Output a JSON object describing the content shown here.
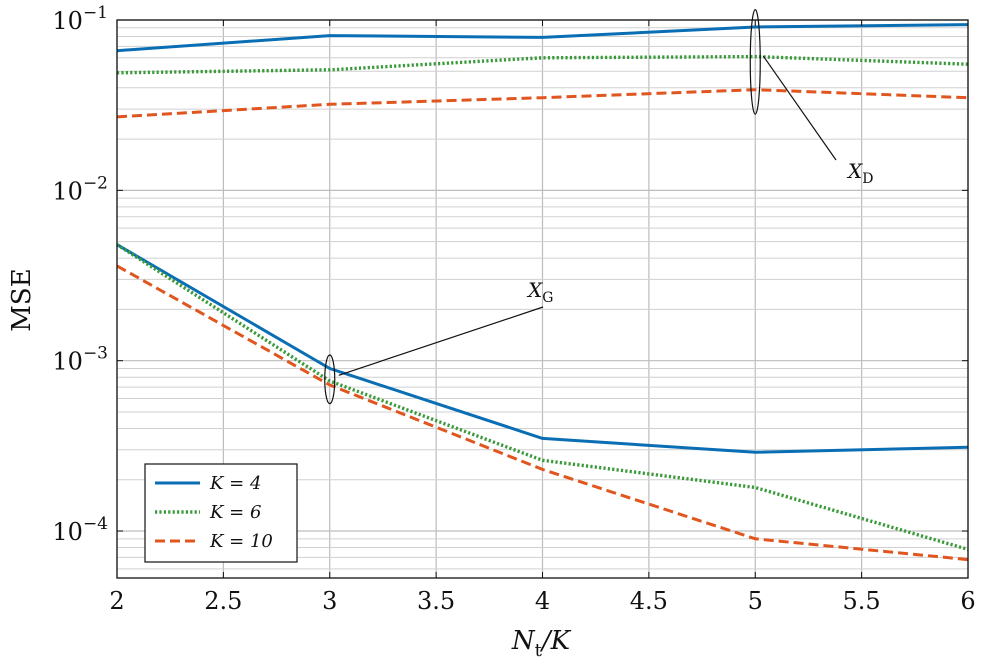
{
  "chart_data": {
    "type": "line",
    "title": "",
    "xlabel": "N_t/K",
    "ylabel": "MSE",
    "yscale": "log",
    "xlim": [
      2,
      6
    ],
    "ylim": [
      5.3e-05,
      0.1
    ],
    "x_ticks": [
      2,
      2.5,
      3,
      3.5,
      4,
      4.5,
      5,
      5.5,
      6
    ],
    "x_tick_labels": [
      "2",
      "2.5",
      "3",
      "3.5",
      "4",
      "4.5",
      "5",
      "5.5",
      "6"
    ],
    "y_ticks": [
      0.0001,
      0.001,
      0.01,
      0.1
    ],
    "y_tick_labels": [
      {
        "base": "10",
        "exp": "−4"
      },
      {
        "base": "10",
        "exp": "−3"
      },
      {
        "base": "10",
        "exp": "−2"
      },
      {
        "base": "10",
        "exp": "−1"
      }
    ],
    "grid": true,
    "legend_position": "bottom-left",
    "legend": [
      "K = 4",
      "K = 6",
      "K = 10"
    ],
    "series": [
      {
        "name": "X_D, K = 4",
        "legend": "K = 4",
        "style": "solid",
        "color": "#0a6eb4",
        "x": [
          2,
          3,
          4,
          5,
          6
        ],
        "values": [
          0.066,
          0.081,
          0.079,
          0.091,
          0.094
        ]
      },
      {
        "name": "X_D, K = 6",
        "legend": "K = 6",
        "style": "dotted",
        "color": "#3a9a3a",
        "x": [
          2,
          3,
          4,
          5,
          6
        ],
        "values": [
          0.049,
          0.051,
          0.06,
          0.061,
          0.055
        ]
      },
      {
        "name": "X_D, K = 10",
        "legend": "K = 10",
        "style": "dashed",
        "color": "#e0561e",
        "x": [
          2,
          3,
          4,
          5,
          6
        ],
        "values": [
          0.027,
          0.032,
          0.035,
          0.039,
          0.035
        ]
      },
      {
        "name": "X_G, K = 4",
        "legend": "K = 4",
        "style": "solid",
        "color": "#0a6eb4",
        "x": [
          2,
          3,
          4,
          5,
          6
        ],
        "values": [
          0.0048,
          0.0009,
          0.00035,
          0.00029,
          0.00031
        ]
      },
      {
        "name": "X_G, K = 6",
        "legend": "K = 6",
        "style": "dotted",
        "color": "#3a9a3a",
        "x": [
          2,
          3,
          4,
          5,
          6
        ],
        "values": [
          0.0048,
          0.00076,
          0.00026,
          0.00018,
          7.8e-05
        ]
      },
      {
        "name": "X_G, K = 10",
        "legend": "K = 10",
        "style": "dashed",
        "color": "#e0561e",
        "x": [
          2,
          3,
          4,
          5,
          6
        ],
        "values": [
          0.0036,
          0.00072,
          0.00023,
          9e-05,
          6.8e-05
        ]
      }
    ],
    "annotations": [
      {
        "label": "X_D",
        "main": "X",
        "sub": "D",
        "target_x": 5,
        "target_y_range": [
          0.028,
          0.115
        ]
      },
      {
        "label": "X_G",
        "main": "X",
        "sub": "G",
        "target_x": 3,
        "target_y_range": [
          0.00056,
          0.00108
        ]
      }
    ]
  },
  "axis": {
    "xlabel_main": "N",
    "xlabel_sub": "t",
    "xlabel_rest": "/K",
    "ylabel": "MSE"
  }
}
